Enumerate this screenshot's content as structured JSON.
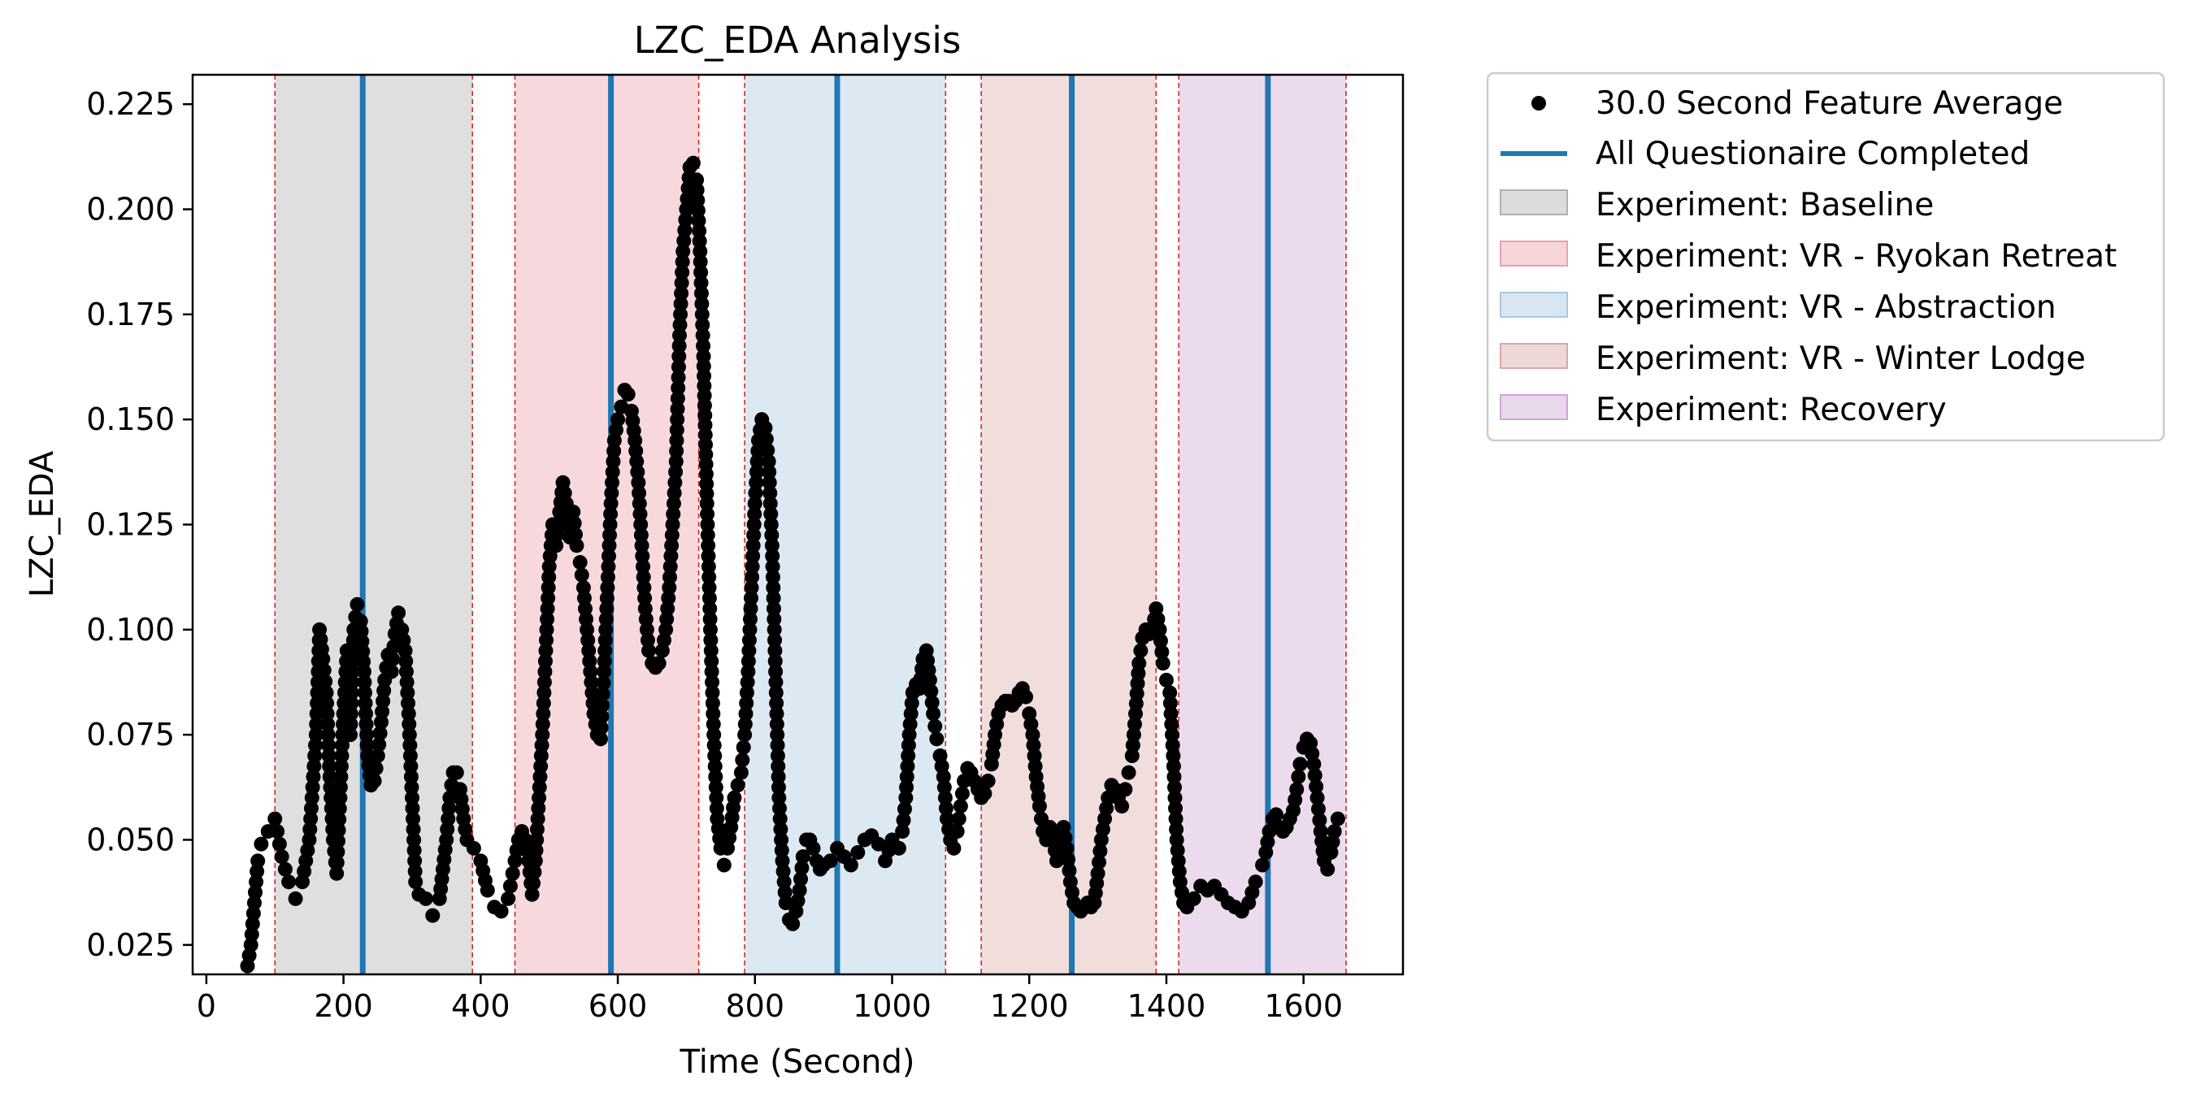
{
  "chart_data": {
    "type": "scatter",
    "title": "LZC_EDA Analysis",
    "xlabel": "Time (Second)",
    "ylabel": "LZC_EDA",
    "xlim": [
      -20,
      1745
    ],
    "ylim": [
      0.018,
      0.232
    ],
    "x_ticks": [
      0,
      200,
      400,
      600,
      800,
      1000,
      1200,
      1400,
      1600
    ],
    "x_tick_labels": [
      "0",
      "200",
      "400",
      "600",
      "800",
      "1000",
      "1200",
      "1400",
      "1600"
    ],
    "y_ticks": [
      0.025,
      0.05,
      0.075,
      0.1,
      0.125,
      0.15,
      0.175,
      0.2,
      0.225
    ],
    "y_tick_labels": [
      "0.025",
      "0.050",
      "0.075",
      "0.100",
      "0.125",
      "0.150",
      "0.175",
      "0.200",
      "0.225"
    ],
    "grid": false,
    "legend_position": "outside-right-top",
    "series": [
      {
        "name": "30.0 Second Feature Average",
        "kind": "scatter",
        "color": "#000000",
        "points": [
          [
            60,
            0.02
          ],
          [
            65,
            0.025
          ],
          [
            70,
            0.035
          ],
          [
            75,
            0.045
          ],
          [
            80,
            0.049
          ],
          [
            90,
            0.052
          ],
          [
            100,
            0.055
          ],
          [
            110,
            0.046
          ],
          [
            120,
            0.04
          ],
          [
            130,
            0.036
          ],
          [
            140,
            0.04
          ],
          [
            150,
            0.05
          ],
          [
            160,
            0.075
          ],
          [
            165,
            0.1
          ],
          [
            170,
            0.093
          ],
          [
            175,
            0.085
          ],
          [
            180,
            0.065
          ],
          [
            185,
            0.05
          ],
          [
            190,
            0.042
          ],
          [
            195,
            0.06
          ],
          [
            200,
            0.08
          ],
          [
            205,
            0.095
          ],
          [
            210,
            0.075
          ],
          [
            215,
            0.1
          ],
          [
            220,
            0.106
          ],
          [
            225,
            0.102
          ],
          [
            230,
            0.09
          ],
          [
            235,
            0.07
          ],
          [
            240,
            0.063
          ],
          [
            245,
            0.064
          ],
          [
            250,
            0.07
          ],
          [
            255,
            0.078
          ],
          [
            260,
            0.088
          ],
          [
            265,
            0.094
          ],
          [
            270,
            0.09
          ],
          [
            275,
            0.099
          ],
          [
            280,
            0.104
          ],
          [
            285,
            0.1
          ],
          [
            290,
            0.095
          ],
          [
            295,
            0.08
          ],
          [
            300,
            0.06
          ],
          [
            305,
            0.04
          ],
          [
            310,
            0.037
          ],
          [
            320,
            0.036
          ],
          [
            330,
            0.032
          ],
          [
            340,
            0.036
          ],
          [
            350,
            0.05
          ],
          [
            355,
            0.06
          ],
          [
            360,
            0.066
          ],
          [
            365,
            0.066
          ],
          [
            370,
            0.062
          ],
          [
            375,
            0.055
          ],
          [
            380,
            0.05
          ],
          [
            390,
            0.048
          ],
          [
            400,
            0.045
          ],
          [
            410,
            0.038
          ],
          [
            420,
            0.034
          ],
          [
            430,
            0.033
          ],
          [
            440,
            0.036
          ],
          [
            450,
            0.045
          ],
          [
            455,
            0.05
          ],
          [
            460,
            0.052
          ],
          [
            465,
            0.05
          ],
          [
            470,
            0.045
          ],
          [
            475,
            0.037
          ],
          [
            480,
            0.045
          ],
          [
            485,
            0.06
          ],
          [
            490,
            0.075
          ],
          [
            495,
            0.095
          ],
          [
            500,
            0.115
          ],
          [
            505,
            0.125
          ],
          [
            510,
            0.12
          ],
          [
            515,
            0.128
          ],
          [
            520,
            0.135
          ],
          [
            525,
            0.13
          ],
          [
            530,
            0.122
          ],
          [
            535,
            0.128
          ],
          [
            540,
            0.12
          ],
          [
            545,
            0.116
          ],
          [
            550,
            0.11
          ],
          [
            555,
            0.1
          ],
          [
            560,
            0.09
          ],
          [
            565,
            0.08
          ],
          [
            570,
            0.075
          ],
          [
            575,
            0.074
          ],
          [
            580,
            0.09
          ],
          [
            585,
            0.11
          ],
          [
            590,
            0.13
          ],
          [
            595,
            0.145
          ],
          [
            600,
            0.15
          ],
          [
            605,
            0.153
          ],
          [
            610,
            0.157
          ],
          [
            615,
            0.156
          ],
          [
            620,
            0.152
          ],
          [
            625,
            0.145
          ],
          [
            630,
            0.135
          ],
          [
            635,
            0.12
          ],
          [
            640,
            0.105
          ],
          [
            645,
            0.095
          ],
          [
            650,
            0.092
          ],
          [
            655,
            0.091
          ],
          [
            660,
            0.092
          ],
          [
            665,
            0.095
          ],
          [
            670,
            0.1
          ],
          [
            675,
            0.11
          ],
          [
            680,
            0.125
          ],
          [
            685,
            0.14
          ],
          [
            690,
            0.17
          ],
          [
            695,
            0.19
          ],
          [
            700,
            0.2
          ],
          [
            705,
            0.21
          ],
          [
            710,
            0.211
          ],
          [
            715,
            0.207
          ],
          [
            720,
            0.19
          ],
          [
            725,
            0.165
          ],
          [
            730,
            0.13
          ],
          [
            735,
            0.1
          ],
          [
            740,
            0.075
          ],
          [
            745,
            0.055
          ],
          [
            750,
            0.048
          ],
          [
            755,
            0.044
          ],
          [
            760,
            0.048
          ],
          [
            765,
            0.053
          ],
          [
            770,
            0.06
          ],
          [
            775,
            0.063
          ],
          [
            780,
            0.066
          ],
          [
            785,
            0.075
          ],
          [
            790,
            0.09
          ],
          [
            795,
            0.11
          ],
          [
            800,
            0.13
          ],
          [
            805,
            0.145
          ],
          [
            810,
            0.15
          ],
          [
            815,
            0.148
          ],
          [
            820,
            0.14
          ],
          [
            825,
            0.12
          ],
          [
            830,
            0.09
          ],
          [
            835,
            0.06
          ],
          [
            840,
            0.045
          ],
          [
            845,
            0.035
          ],
          [
            850,
            0.031
          ],
          [
            855,
            0.03
          ],
          [
            860,
            0.033
          ],
          [
            865,
            0.038
          ],
          [
            870,
            0.046
          ],
          [
            875,
            0.05
          ],
          [
            880,
            0.05
          ],
          [
            885,
            0.048
          ],
          [
            890,
            0.045
          ],
          [
            895,
            0.043
          ],
          [
            900,
            0.044
          ],
          [
            910,
            0.045
          ],
          [
            920,
            0.048
          ],
          [
            930,
            0.046
          ],
          [
            940,
            0.044
          ],
          [
            950,
            0.047
          ],
          [
            960,
            0.05
          ],
          [
            970,
            0.051
          ],
          [
            980,
            0.049
          ],
          [
            990,
            0.045
          ],
          [
            1000,
            0.05
          ],
          [
            1010,
            0.048
          ],
          [
            1015,
            0.052
          ],
          [
            1020,
            0.06
          ],
          [
            1025,
            0.075
          ],
          [
            1030,
            0.085
          ],
          [
            1035,
            0.087
          ],
          [
            1040,
            0.086
          ],
          [
            1045,
            0.093
          ],
          [
            1050,
            0.095
          ],
          [
            1055,
            0.088
          ],
          [
            1060,
            0.08
          ],
          [
            1065,
            0.074
          ],
          [
            1070,
            0.07
          ],
          [
            1075,
            0.065
          ],
          [
            1080,
            0.055
          ],
          [
            1085,
            0.05
          ],
          [
            1090,
            0.048
          ],
          [
            1095,
            0.052
          ],
          [
            1100,
            0.058
          ],
          [
            1105,
            0.064
          ],
          [
            1110,
            0.067
          ],
          [
            1115,
            0.066
          ],
          [
            1120,
            0.064
          ],
          [
            1125,
            0.062
          ],
          [
            1130,
            0.06
          ],
          [
            1135,
            0.061
          ],
          [
            1140,
            0.064
          ],
          [
            1145,
            0.068
          ],
          [
            1150,
            0.075
          ],
          [
            1155,
            0.08
          ],
          [
            1160,
            0.082
          ],
          [
            1165,
            0.083
          ],
          [
            1170,
            0.083
          ],
          [
            1175,
            0.082
          ],
          [
            1180,
            0.083
          ],
          [
            1185,
            0.085
          ],
          [
            1190,
            0.086
          ],
          [
            1195,
            0.084
          ],
          [
            1200,
            0.08
          ],
          [
            1205,
            0.075
          ],
          [
            1210,
            0.065
          ],
          [
            1215,
            0.058
          ],
          [
            1220,
            0.052
          ],
          [
            1225,
            0.05
          ],
          [
            1230,
            0.053
          ],
          [
            1235,
            0.05
          ],
          [
            1240,
            0.045
          ],
          [
            1245,
            0.052
          ],
          [
            1250,
            0.053
          ],
          [
            1255,
            0.048
          ],
          [
            1260,
            0.04
          ],
          [
            1265,
            0.035
          ],
          [
            1270,
            0.034
          ],
          [
            1275,
            0.033
          ],
          [
            1280,
            0.034
          ],
          [
            1285,
            0.035
          ],
          [
            1290,
            0.034
          ],
          [
            1295,
            0.035
          ],
          [
            1300,
            0.042
          ],
          [
            1305,
            0.05
          ],
          [
            1310,
            0.055
          ],
          [
            1315,
            0.06
          ],
          [
            1320,
            0.063
          ],
          [
            1325,
            0.062
          ],
          [
            1330,
            0.06
          ],
          [
            1335,
            0.058
          ],
          [
            1340,
            0.062
          ],
          [
            1345,
            0.066
          ],
          [
            1350,
            0.07
          ],
          [
            1355,
            0.08
          ],
          [
            1360,
            0.092
          ],
          [
            1365,
            0.098
          ],
          [
            1370,
            0.1
          ],
          [
            1375,
            0.099
          ],
          [
            1380,
            0.1
          ],
          [
            1385,
            0.105
          ],
          [
            1390,
            0.1
          ],
          [
            1395,
            0.092
          ],
          [
            1400,
            0.088
          ],
          [
            1405,
            0.085
          ],
          [
            1410,
            0.07
          ],
          [
            1415,
            0.05
          ],
          [
            1420,
            0.04
          ],
          [
            1425,
            0.035
          ],
          [
            1430,
            0.034
          ],
          [
            1440,
            0.036
          ],
          [
            1450,
            0.039
          ],
          [
            1460,
            0.038
          ],
          [
            1470,
            0.039
          ],
          [
            1480,
            0.037
          ],
          [
            1490,
            0.035
          ],
          [
            1500,
            0.034
          ],
          [
            1510,
            0.033
          ],
          [
            1520,
            0.035
          ],
          [
            1530,
            0.04
          ],
          [
            1540,
            0.044
          ],
          [
            1545,
            0.047
          ],
          [
            1550,
            0.052
          ],
          [
            1555,
            0.055
          ],
          [
            1560,
            0.056
          ],
          [
            1565,
            0.053
          ],
          [
            1570,
            0.052
          ],
          [
            1575,
            0.053
          ],
          [
            1580,
            0.055
          ],
          [
            1585,
            0.057
          ],
          [
            1590,
            0.062
          ],
          [
            1595,
            0.068
          ],
          [
            1600,
            0.072
          ],
          [
            1605,
            0.074
          ],
          [
            1610,
            0.073
          ],
          [
            1615,
            0.068
          ],
          [
            1620,
            0.06
          ],
          [
            1625,
            0.052
          ],
          [
            1630,
            0.045
          ],
          [
            1635,
            0.043
          ],
          [
            1640,
            0.047
          ],
          [
            1645,
            0.052
          ],
          [
            1650,
            0.055
          ]
        ]
      }
    ],
    "vlines": {
      "name": "All Questionaire Completed",
      "color": "#1f77b4",
      "x": [
        228,
        590,
        920,
        1262,
        1548
      ]
    },
    "spans": [
      {
        "name": "Experiment: Baseline",
        "x0": 100,
        "x1": 388,
        "color": "#b0b0b0"
      },
      {
        "name": "Experiment: VR - Ryokan Retreat",
        "x0": 450,
        "x1": 718,
        "color": "#eca1ab"
      },
      {
        "name": "Experiment: VR - Abstraction",
        "x0": 785,
        "x1": 1078,
        "color": "#a8c8e1"
      },
      {
        "name": "Experiment: VR - Winter Lodge",
        "x0": 1130,
        "x1": 1385,
        "color": "#d9a9a7"
      },
      {
        "name": "Experiment: Recovery",
        "x0": 1418,
        "x1": 1662,
        "color": "#cfa6d3"
      }
    ],
    "span_boundary_color": "#d62728"
  }
}
